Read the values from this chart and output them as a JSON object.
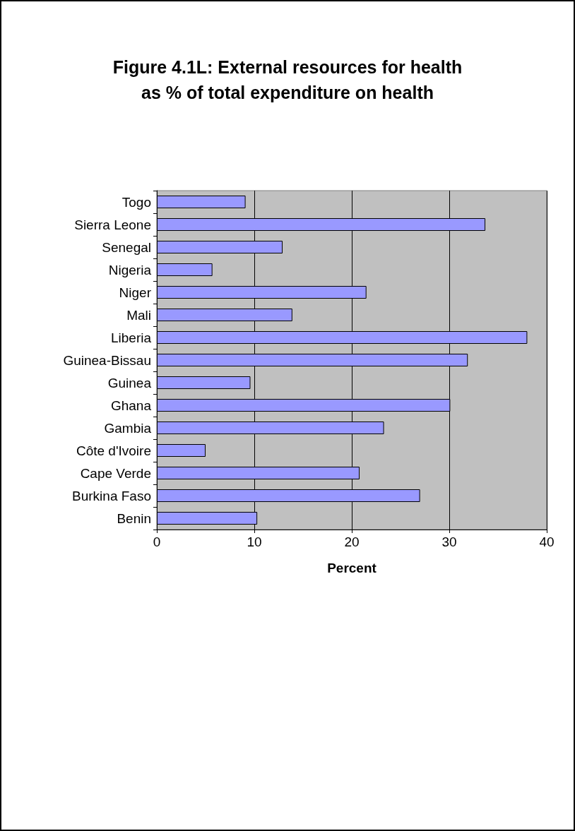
{
  "chart_data": {
    "type": "bar",
    "orientation": "horizontal",
    "title": "Figure 4.1L: External resources for health\nas % of total expenditure on health",
    "xlabel": "Percent",
    "categories": [
      "Togo",
      "Sierra Leone",
      "Senegal",
      "Nigeria",
      "Niger",
      "Mali",
      "Liberia",
      "Guinea-Bissau",
      "Guinea",
      "Ghana",
      "Gambia",
      "Côte d'Ivoire",
      "Cape Verde",
      "Burkina Faso",
      "Benin"
    ],
    "values": [
      9.1,
      33.7,
      12.9,
      5.7,
      21.5,
      13.9,
      38.0,
      31.9,
      9.6,
      30.1,
      23.3,
      5.0,
      20.8,
      27.0,
      10.3
    ],
    "color": "#9999ff",
    "xlim": [
      0,
      40
    ],
    "xticks": [
      0,
      10,
      20,
      30,
      40
    ],
    "grid": "x"
  }
}
